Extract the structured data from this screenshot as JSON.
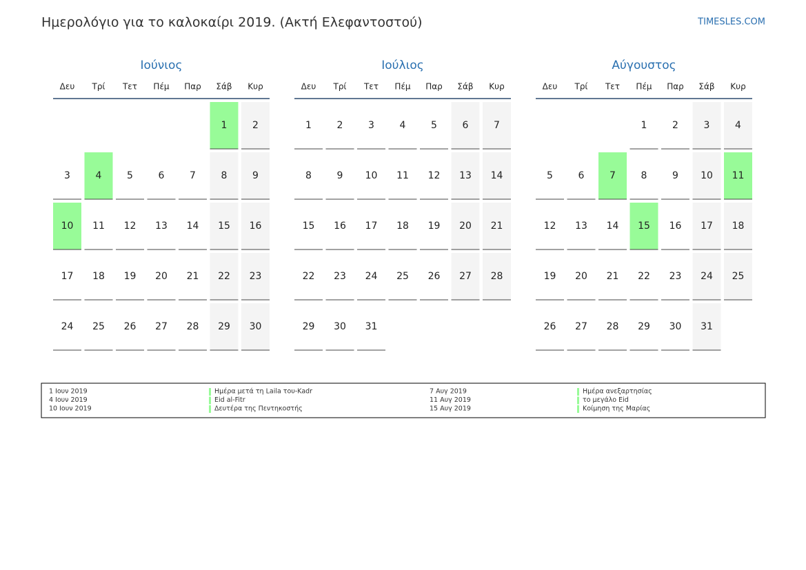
{
  "header": {
    "title": "Ημερολόγιο για το καλοκαίρι 2019. (Ακτή Ελεφαντοστού)",
    "site": "TIMESLES.COM"
  },
  "weekdays": [
    "Δευ",
    "Τρί",
    "Τετ",
    "Πέμ",
    "Παρ",
    "Σάβ",
    "Κυρ"
  ],
  "months": [
    {
      "name": "Ιούνιος",
      "highlight": [
        1,
        4,
        10
      ],
      "weeks": [
        [
          null,
          null,
          null,
          null,
          null,
          1,
          2
        ],
        [
          3,
          4,
          5,
          6,
          7,
          8,
          9
        ],
        [
          10,
          11,
          12,
          13,
          14,
          15,
          16
        ],
        [
          17,
          18,
          19,
          20,
          21,
          22,
          23
        ],
        [
          24,
          25,
          26,
          27,
          28,
          29,
          30
        ]
      ]
    },
    {
      "name": "Ιούλιος",
      "highlight": [],
      "weeks": [
        [
          1,
          2,
          3,
          4,
          5,
          6,
          7
        ],
        [
          8,
          9,
          10,
          11,
          12,
          13,
          14
        ],
        [
          15,
          16,
          17,
          18,
          19,
          20,
          21
        ],
        [
          22,
          23,
          24,
          25,
          26,
          27,
          28
        ],
        [
          29,
          30,
          31,
          null,
          null,
          null,
          null
        ]
      ]
    },
    {
      "name": "Αύγουστος",
      "highlight": [
        7,
        11,
        15
      ],
      "weeks": [
        [
          null,
          null,
          null,
          1,
          2,
          3,
          4
        ],
        [
          5,
          6,
          7,
          8,
          9,
          10,
          11
        ],
        [
          12,
          13,
          14,
          15,
          16,
          17,
          18
        ],
        [
          19,
          20,
          21,
          22,
          23,
          24,
          25
        ],
        [
          26,
          27,
          28,
          29,
          30,
          31,
          null
        ]
      ]
    }
  ],
  "legend": [
    {
      "date": "1 Ιουν 2019",
      "name": "Ημέρα μετά τη Laila του-Kadr"
    },
    {
      "date": "4 Ιουν 2019",
      "name": "Eid al-Fitr"
    },
    {
      "date": "10 Ιουν 2019",
      "name": "Δευτέρα της Πεντηκοστής"
    },
    {
      "date": "7 Αυγ 2019",
      "name": "Ημέρα ανεξαρτησίας"
    },
    {
      "date": "11 Αυγ 2019",
      "name": "το μεγάλο Eid"
    },
    {
      "date": "15 Αυγ 2019",
      "name": "Κοίμηση της Μαρίας"
    }
  ]
}
